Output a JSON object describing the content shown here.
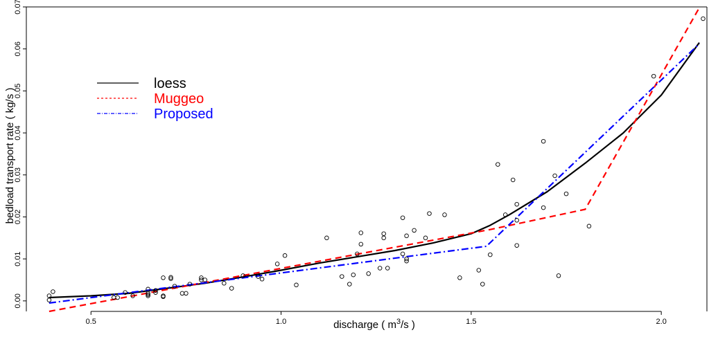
{
  "chart_data": {
    "type": "scatter",
    "xlabel": "discharge ( m",
    "xlabel_sup": "3",
    "xlabel_end": "/s )",
    "ylabel": "bedload transport rate ( kg/s )",
    "xlim": [
      0.33,
      2.12
    ],
    "ylim": [
      -0.0025,
      0.07
    ],
    "x_ticks": [
      0.5,
      1.0,
      1.5,
      2.0
    ],
    "x_tick_labels": [
      "0.5",
      "1.0",
      "1.5",
      "2.0"
    ],
    "y_ticks": [
      0.0,
      0.01,
      0.02,
      0.03,
      0.04,
      0.05,
      0.06,
      0.07
    ],
    "y_tick_labels": [
      "0.00",
      "0.01",
      "0.02",
      "0.03",
      "0.04",
      "0.05",
      "0.06",
      "0.07"
    ],
    "grid": false,
    "legend_position": "top-left",
    "legend": [
      {
        "label": "loess",
        "color": "#000000",
        "style": "solid"
      },
      {
        "label": "Muggeo",
        "color": "#ff0000",
        "style": "dashed"
      },
      {
        "label": "Proposed",
        "color": "#0000ff",
        "style": "dotdash"
      }
    ],
    "points": [
      [
        0.39,
        0.0012
      ],
      [
        0.39,
        0.0002
      ],
      [
        0.4,
        0.0022
      ],
      [
        0.56,
        0.0008
      ],
      [
        0.57,
        0.0008
      ],
      [
        0.59,
        0.002
      ],
      [
        0.61,
        0.0012
      ],
      [
        0.65,
        0.0028
      ],
      [
        0.65,
        0.0018
      ],
      [
        0.65,
        0.0015
      ],
      [
        0.65,
        0.0012
      ],
      [
        0.67,
        0.0025
      ],
      [
        0.67,
        0.002
      ],
      [
        0.69,
        0.0055
      ],
      [
        0.69,
        0.0012
      ],
      [
        0.69,
        0.001
      ],
      [
        0.71,
        0.0056
      ],
      [
        0.71,
        0.0053
      ],
      [
        0.72,
        0.0035
      ],
      [
        0.74,
        0.0018
      ],
      [
        0.75,
        0.0018
      ],
      [
        0.76,
        0.004
      ],
      [
        0.79,
        0.0055
      ],
      [
        0.79,
        0.005
      ],
      [
        0.8,
        0.005
      ],
      [
        0.85,
        0.0042
      ],
      [
        0.87,
        0.003
      ],
      [
        0.9,
        0.006
      ],
      [
        0.94,
        0.0058
      ],
      [
        0.95,
        0.0052
      ],
      [
        0.99,
        0.0088
      ],
      [
        1.01,
        0.0108
      ],
      [
        1.04,
        0.0038
      ],
      [
        1.12,
        0.015
      ],
      [
        1.16,
        0.0058
      ],
      [
        1.18,
        0.004
      ],
      [
        1.19,
        0.0062
      ],
      [
        1.2,
        0.0112
      ],
      [
        1.21,
        0.0162
      ],
      [
        1.21,
        0.0135
      ],
      [
        1.23,
        0.0065
      ],
      [
        1.26,
        0.0078
      ],
      [
        1.27,
        0.015
      ],
      [
        1.27,
        0.016
      ],
      [
        1.28,
        0.0078
      ],
      [
        1.32,
        0.0198
      ],
      [
        1.32,
        0.0112
      ],
      [
        1.33,
        0.0155
      ],
      [
        1.33,
        0.01
      ],
      [
        1.33,
        0.0095
      ],
      [
        1.35,
        0.0168
      ],
      [
        1.38,
        0.015
      ],
      [
        1.39,
        0.0208
      ],
      [
        1.43,
        0.0205
      ],
      [
        1.47,
        0.0055
      ],
      [
        1.52,
        0.0073
      ],
      [
        1.53,
        0.004
      ],
      [
        1.55,
        0.011
      ],
      [
        1.57,
        0.0325
      ],
      [
        1.61,
        0.0288
      ],
      [
        1.59,
        0.0205
      ],
      [
        1.62,
        0.023
      ],
      [
        1.62,
        0.0192
      ],
      [
        1.62,
        0.0132
      ],
      [
        1.69,
        0.038
      ],
      [
        1.69,
        0.0222
      ],
      [
        1.72,
        0.0298
      ],
      [
        1.73,
        0.006
      ],
      [
        1.75,
        0.0255
      ],
      [
        1.81,
        0.0178
      ],
      [
        1.98,
        0.0535
      ],
      [
        2.11,
        0.0672
      ]
    ],
    "series": [
      {
        "name": "loess",
        "color": "#000000",
        "dash": "",
        "x": [
          0.39,
          0.5,
          0.6,
          0.7,
          0.8,
          0.9,
          1.0,
          1.1,
          1.2,
          1.3,
          1.4,
          1.5,
          1.55,
          1.6,
          1.7,
          1.8,
          1.9,
          2.0,
          2.1
        ],
        "y": [
          0.0008,
          0.0012,
          0.0018,
          0.003,
          0.0042,
          0.0057,
          0.0073,
          0.009,
          0.0105,
          0.012,
          0.0138,
          0.016,
          0.018,
          0.0205,
          0.026,
          0.0328,
          0.04,
          0.049,
          0.0615
        ]
      },
      {
        "name": "Muggeo",
        "color": "#ff0000",
        "dash": "9,6",
        "x": [
          0.39,
          1.55,
          1.8,
          2.1
        ],
        "y": [
          -0.0025,
          0.017,
          0.0218,
          0.0698
        ]
      },
      {
        "name": "Proposed",
        "color": "#0000ff",
        "dash": "10,4,2,4",
        "x": [
          0.39,
          1.54,
          2.1
        ],
        "y": [
          -0.0005,
          0.013,
          0.0612
        ]
      }
    ]
  }
}
